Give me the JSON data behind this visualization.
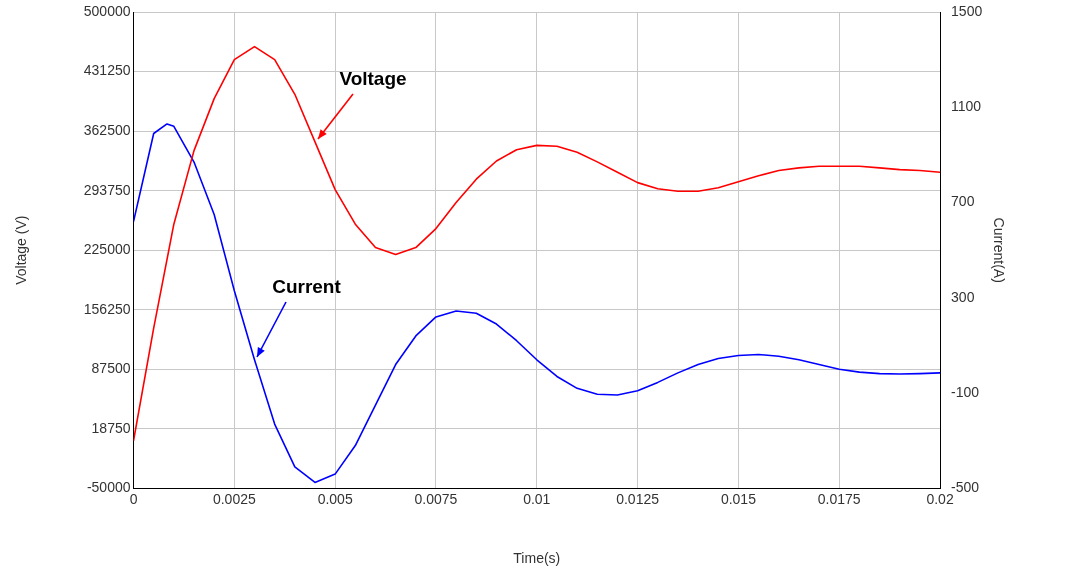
{
  "chart_data": {
    "type": "line",
    "xlabel": "Time(s)",
    "ylabel": "Voltage (V)",
    "y2label": "Current(A)",
    "xlim": [
      0,
      0.02
    ],
    "xticks": [
      0,
      0.0025,
      0.005,
      0.0075,
      0.01,
      0.0125,
      0.015,
      0.0175,
      0.02
    ],
    "ylim": [
      -50000,
      500000
    ],
    "yticks": [
      -50000,
      18750,
      87500,
      156250,
      225000,
      293750,
      362500,
      431250,
      500000
    ],
    "y2lim": [
      -500,
      1500
    ],
    "y2ticks": [
      -500,
      -100,
      300,
      700,
      1100,
      1500
    ],
    "grid": true,
    "legend": false,
    "series": [
      {
        "name": "Voltage",
        "color": "#ff0000",
        "axis": "y",
        "x": [
          0,
          0.0005,
          0.001,
          0.0015,
          0.002,
          0.0025,
          0.003,
          0.0035,
          0.004,
          0.0045,
          0.005,
          0.0055,
          0.006,
          0.0065,
          0.007,
          0.0075,
          0.008,
          0.0085,
          0.009,
          0.0095,
          0.01,
          0.0105,
          0.011,
          0.0115,
          0.012,
          0.0125,
          0.013,
          0.0135,
          0.014,
          0.0145,
          0.015,
          0.0155,
          0.016,
          0.0165,
          0.017,
          0.0175,
          0.018,
          0.0185,
          0.019,
          0.0195,
          0.02
        ],
        "values": [
          5000,
          135000,
          255000,
          340000,
          400000,
          445000,
          460000,
          445000,
          405000,
          350000,
          295000,
          255000,
          228000,
          220000,
          228000,
          250000,
          280000,
          307000,
          328000,
          341000,
          346000,
          345000,
          338000,
          327000,
          315000,
          303000,
          296000,
          293000,
          293000,
          297000,
          304000,
          311000,
          317000,
          320000,
          322000,
          322000,
          322000,
          320000,
          318000,
          317000,
          315000
        ]
      },
      {
        "name": "Current",
        "color": "#0000ff",
        "axis": "y2",
        "x": [
          0,
          0.0005,
          0.00083,
          0.001,
          0.0015,
          0.002,
          0.0025,
          0.003,
          0.0035,
          0.004,
          0.0045,
          0.005,
          0.0055,
          0.006,
          0.0065,
          0.007,
          0.0075,
          0.008,
          0.0085,
          0.009,
          0.0095,
          0.01,
          0.0105,
          0.011,
          0.0115,
          0.012,
          0.0125,
          0.013,
          0.0135,
          0.014,
          0.0145,
          0.015,
          0.0155,
          0.016,
          0.0165,
          0.017,
          0.0175,
          0.018,
          0.0185,
          0.019,
          0.0195,
          0.02
        ],
        "values": [
          620,
          990,
          1030,
          1020,
          870,
          650,
          330,
          40,
          -230,
          -410,
          -475,
          -440,
          -320,
          -150,
          20,
          140,
          220,
          245,
          235,
          190,
          120,
          40,
          -30,
          -80,
          -105,
          -108,
          -90,
          -55,
          -15,
          20,
          45,
          58,
          62,
          55,
          40,
          20,
          0,
          -12,
          -18,
          -20,
          -18,
          -15
        ]
      }
    ]
  }
}
